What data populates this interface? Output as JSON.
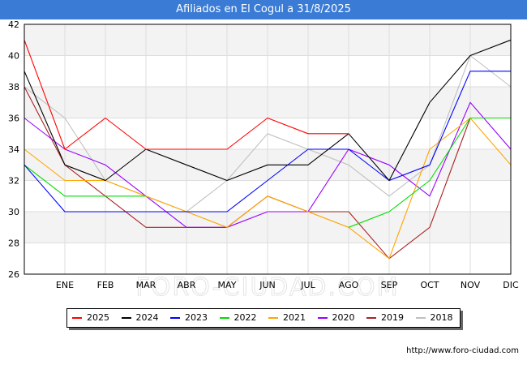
{
  "header": {
    "title": "Afiliados en El Cogul a 31/8/2025"
  },
  "source": "http://www.foro-ciudad.com",
  "watermark": "FORO-CIUDAD.COM",
  "chart_data": {
    "type": "line",
    "title": "Afiliados en El Cogul a 31/8/2025",
    "xlabel": "",
    "ylabel": "",
    "categories": [
      "",
      "ENE",
      "FEB",
      "MAR",
      "ABR",
      "MAY",
      "JUN",
      "JUL",
      "AGO",
      "SEP",
      "OCT",
      "NOV",
      "DIC"
    ],
    "ylim": [
      26,
      42
    ],
    "yticks": [
      26,
      28,
      30,
      32,
      34,
      36,
      38,
      40,
      42
    ],
    "grid": true,
    "legend_position": "bottom",
    "series": [
      {
        "name": "2025",
        "color": "#ff0000",
        "values": [
          41,
          34,
          36,
          34,
          34,
          34,
          36,
          35,
          35,
          null,
          null,
          null,
          null
        ]
      },
      {
        "name": "2024",
        "color": "#000000",
        "values": [
          39,
          33,
          32,
          34,
          33,
          32,
          33,
          33,
          35,
          32,
          37,
          40,
          41
        ]
      },
      {
        "name": "2023",
        "color": "#0000ff",
        "values": [
          33,
          30,
          30,
          30,
          30,
          30,
          32,
          34,
          34,
          32,
          33,
          39,
          39
        ]
      },
      {
        "name": "2022",
        "color": "#00dd00",
        "values": [
          33,
          31,
          31,
          31,
          null,
          null,
          null,
          null,
          29,
          30,
          32,
          36,
          36
        ]
      },
      {
        "name": "2021",
        "color": "#ffa500",
        "values": [
          34,
          32,
          32,
          31,
          30,
          29,
          31,
          30,
          29,
          27,
          34,
          36,
          33
        ]
      },
      {
        "name": "2020",
        "color": "#9900ff",
        "values": [
          36,
          34,
          33,
          31,
          29,
          29,
          30,
          30,
          34,
          33,
          31,
          37,
          34
        ]
      },
      {
        "name": "2019",
        "color": "#aa2222",
        "values": [
          38,
          33,
          31,
          29,
          29,
          29,
          31,
          30,
          30,
          27,
          29,
          36,
          36
        ]
      },
      {
        "name": "2018",
        "color": "#c0c0c0",
        "values": [
          38,
          36,
          32,
          31,
          30,
          32,
          35,
          34,
          33,
          31,
          33,
          40,
          38
        ]
      }
    ]
  }
}
